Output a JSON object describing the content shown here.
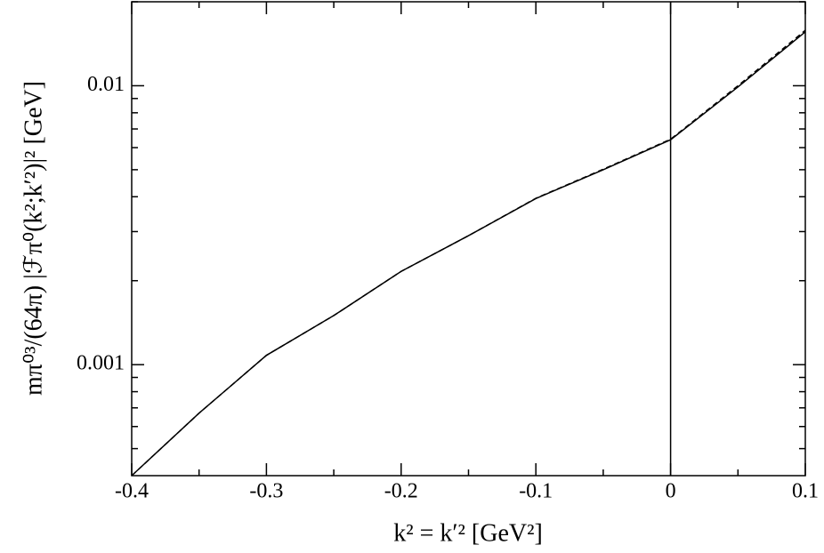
{
  "chart_data": {
    "type": "line",
    "xlabel": "k² = k′²  [GeV²]",
    "ylabel": "mπ⁰³/(64π) |ℱπ⁰(k²;k′²)|²  [GeV]",
    "x": [
      -0.4,
      -0.35,
      -0.3,
      -0.25,
      -0.2,
      -0.15,
      -0.1,
      -0.05,
      0,
      0.05,
      0.1
    ],
    "series": [
      {
        "color": "#000000",
        "dash": false,
        "values": [
          0.0004,
          0.00067,
          0.00108,
          0.0015,
          0.00216,
          0.0029,
          0.00394,
          0.005,
          0.0064,
          0.0099,
          0.0156
        ]
      },
      {
        "color": "#000000",
        "dash": true,
        "values": [
          0.0004,
          0.00067,
          0.00108,
          0.0015,
          0.00216,
          0.0029,
          0.00395,
          0.00502,
          0.00643,
          0.01,
          0.0158
        ]
      }
    ],
    "xlim": [
      -0.4,
      0.1
    ],
    "xticks": [
      -0.4,
      -0.3,
      -0.2,
      -0.1,
      0,
      0.1
    ],
    "xminorticks": [
      -0.35,
      -0.25,
      -0.15,
      -0.05,
      0.05
    ],
    "ylim": [
      0.0004,
      0.02
    ],
    "ylog": true,
    "yticks": [
      0.001,
      0.01
    ],
    "yminorticks": [
      0.0005,
      0.0006,
      0.0007,
      0.0008,
      0.0009,
      0.002,
      0.003,
      0.004,
      0.005,
      0.006,
      0.007,
      0.008,
      0.009,
      0.02
    ],
    "vlines": [
      0
    ]
  }
}
